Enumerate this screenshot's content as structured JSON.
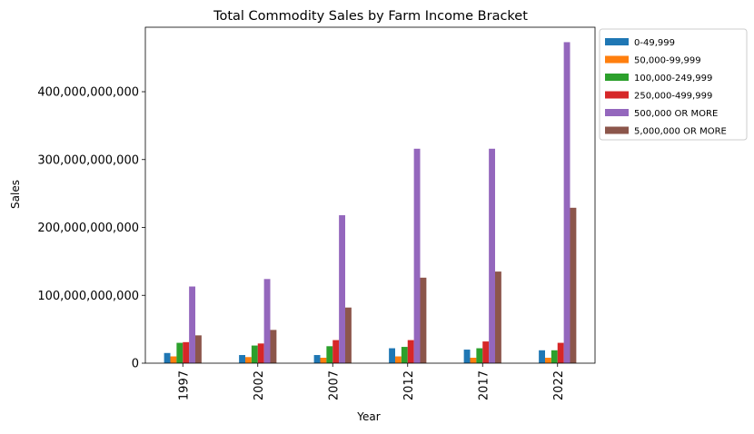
{
  "chart_data": {
    "type": "bar",
    "title": "Total Commodity Sales by Farm Income Bracket",
    "xlabel": "Year",
    "ylabel": "Sales",
    "categories": [
      "1997",
      "2002",
      "2007",
      "2012",
      "2017",
      "2022"
    ],
    "ylim": [
      0,
      495000000000
    ],
    "yticks": [
      0,
      100000000000,
      200000000000,
      300000000000,
      400000000000
    ],
    "ytick_labels": [
      "0",
      "100,000,000,000",
      "200,000,000,000",
      "300,000,000,000",
      "400,000,000,000"
    ],
    "grid": false,
    "legend_placement": "outside-top-right",
    "series": [
      {
        "name": "0-49,999",
        "color": "#1f77b4",
        "values": [
          15000000000,
          12000000000,
          12000000000,
          22000000000,
          20000000000,
          19000000000
        ]
      },
      {
        "name": "50,000-99,999",
        "color": "#ff7f0e",
        "values": [
          10000000000,
          9000000000,
          8000000000,
          10000000000,
          8000000000,
          8000000000
        ]
      },
      {
        "name": "100,000-249,999",
        "color": "#2ca02c",
        "values": [
          30000000000,
          26000000000,
          25000000000,
          24000000000,
          22000000000,
          19000000000
        ]
      },
      {
        "name": "250,000-499,999",
        "color": "#d62728",
        "values": [
          31000000000,
          29000000000,
          34000000000,
          34000000000,
          32000000000,
          30000000000
        ]
      },
      {
        "name": "500,000 OR MORE",
        "color": "#9467bd",
        "values": [
          113000000000,
          124000000000,
          218000000000,
          316000000000,
          316000000000,
          473000000000
        ]
      },
      {
        "name": "5,000,000 OR MORE",
        "color": "#8c564b",
        "values": [
          41000000000,
          49000000000,
          82000000000,
          126000000000,
          135000000000,
          229000000000
        ]
      }
    ]
  }
}
